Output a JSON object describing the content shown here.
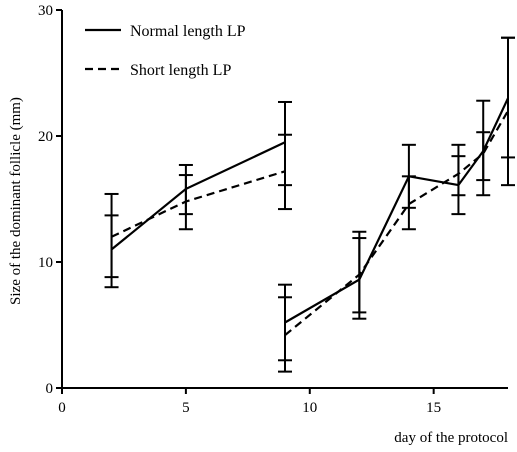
{
  "chart_data": {
    "type": "line",
    "title": "",
    "xlabel": "day of the protocol",
    "ylabel": "Size of the dominant follicle (mm)",
    "xlim": [
      0,
      18
    ],
    "ylim": [
      0,
      30
    ],
    "x_ticks": [
      0,
      5,
      10,
      15
    ],
    "y_ticks": [
      0,
      10,
      20,
      30
    ],
    "grid": false,
    "legend_position": "top-left",
    "series": [
      {
        "name": "Normal length LP",
        "style": "solid",
        "color": "#000000",
        "segments": [
          [
            {
              "x": 2,
              "y": 11.0,
              "lo": 8.0,
              "hi": 13.7
            },
            {
              "x": 5,
              "y": 15.8,
              "lo": 13.8,
              "hi": 17.7
            },
            {
              "x": 9,
              "y": 19.5,
              "lo": 16.1,
              "hi": 22.7
            }
          ],
          [
            {
              "x": 9,
              "y": 5.2,
              "lo": 2.2,
              "hi": 8.2
            },
            {
              "x": 12,
              "y": 8.6,
              "lo": 5.5,
              "hi": 12.4
            },
            {
              "x": 14,
              "y": 16.8,
              "lo": 14.3,
              "hi": 19.3
            },
            {
              "x": 16,
              "y": 16.1,
              "lo": 13.8,
              "hi": 18.4
            },
            {
              "x": 17,
              "y": 18.8,
              "lo": 16.5,
              "hi": 22.8
            },
            {
              "x": 18,
              "y": 23.0,
              "lo": 18.3,
              "hi": 27.8
            }
          ]
        ]
      },
      {
        "name": "Short length LP",
        "style": "dashed",
        "color": "#000000",
        "segments": [
          [
            {
              "x": 2,
              "y": 12.0,
              "lo": 8.8,
              "hi": 15.4
            },
            {
              "x": 5,
              "y": 14.8,
              "lo": 12.6,
              "hi": 16.9
            },
            {
              "x": 9,
              "y": 17.2,
              "lo": 14.2,
              "hi": 20.1
            }
          ],
          [
            {
              "x": 9,
              "y": 4.2,
              "lo": 1.3,
              "hi": 7.2
            },
            {
              "x": 12,
              "y": 9.0,
              "lo": 6.0,
              "hi": 11.9
            },
            {
              "x": 14,
              "y": 14.6,
              "lo": 12.6,
              "hi": 16.8
            },
            {
              "x": 16,
              "y": 17.0,
              "lo": 15.3,
              "hi": 19.3
            },
            {
              "x": 17,
              "y": 18.6,
              "lo": 15.3,
              "hi": 20.3
            },
            {
              "x": 18,
              "y": 22.0,
              "lo": 16.1,
              "hi": 27.8
            }
          ]
        ]
      }
    ]
  }
}
